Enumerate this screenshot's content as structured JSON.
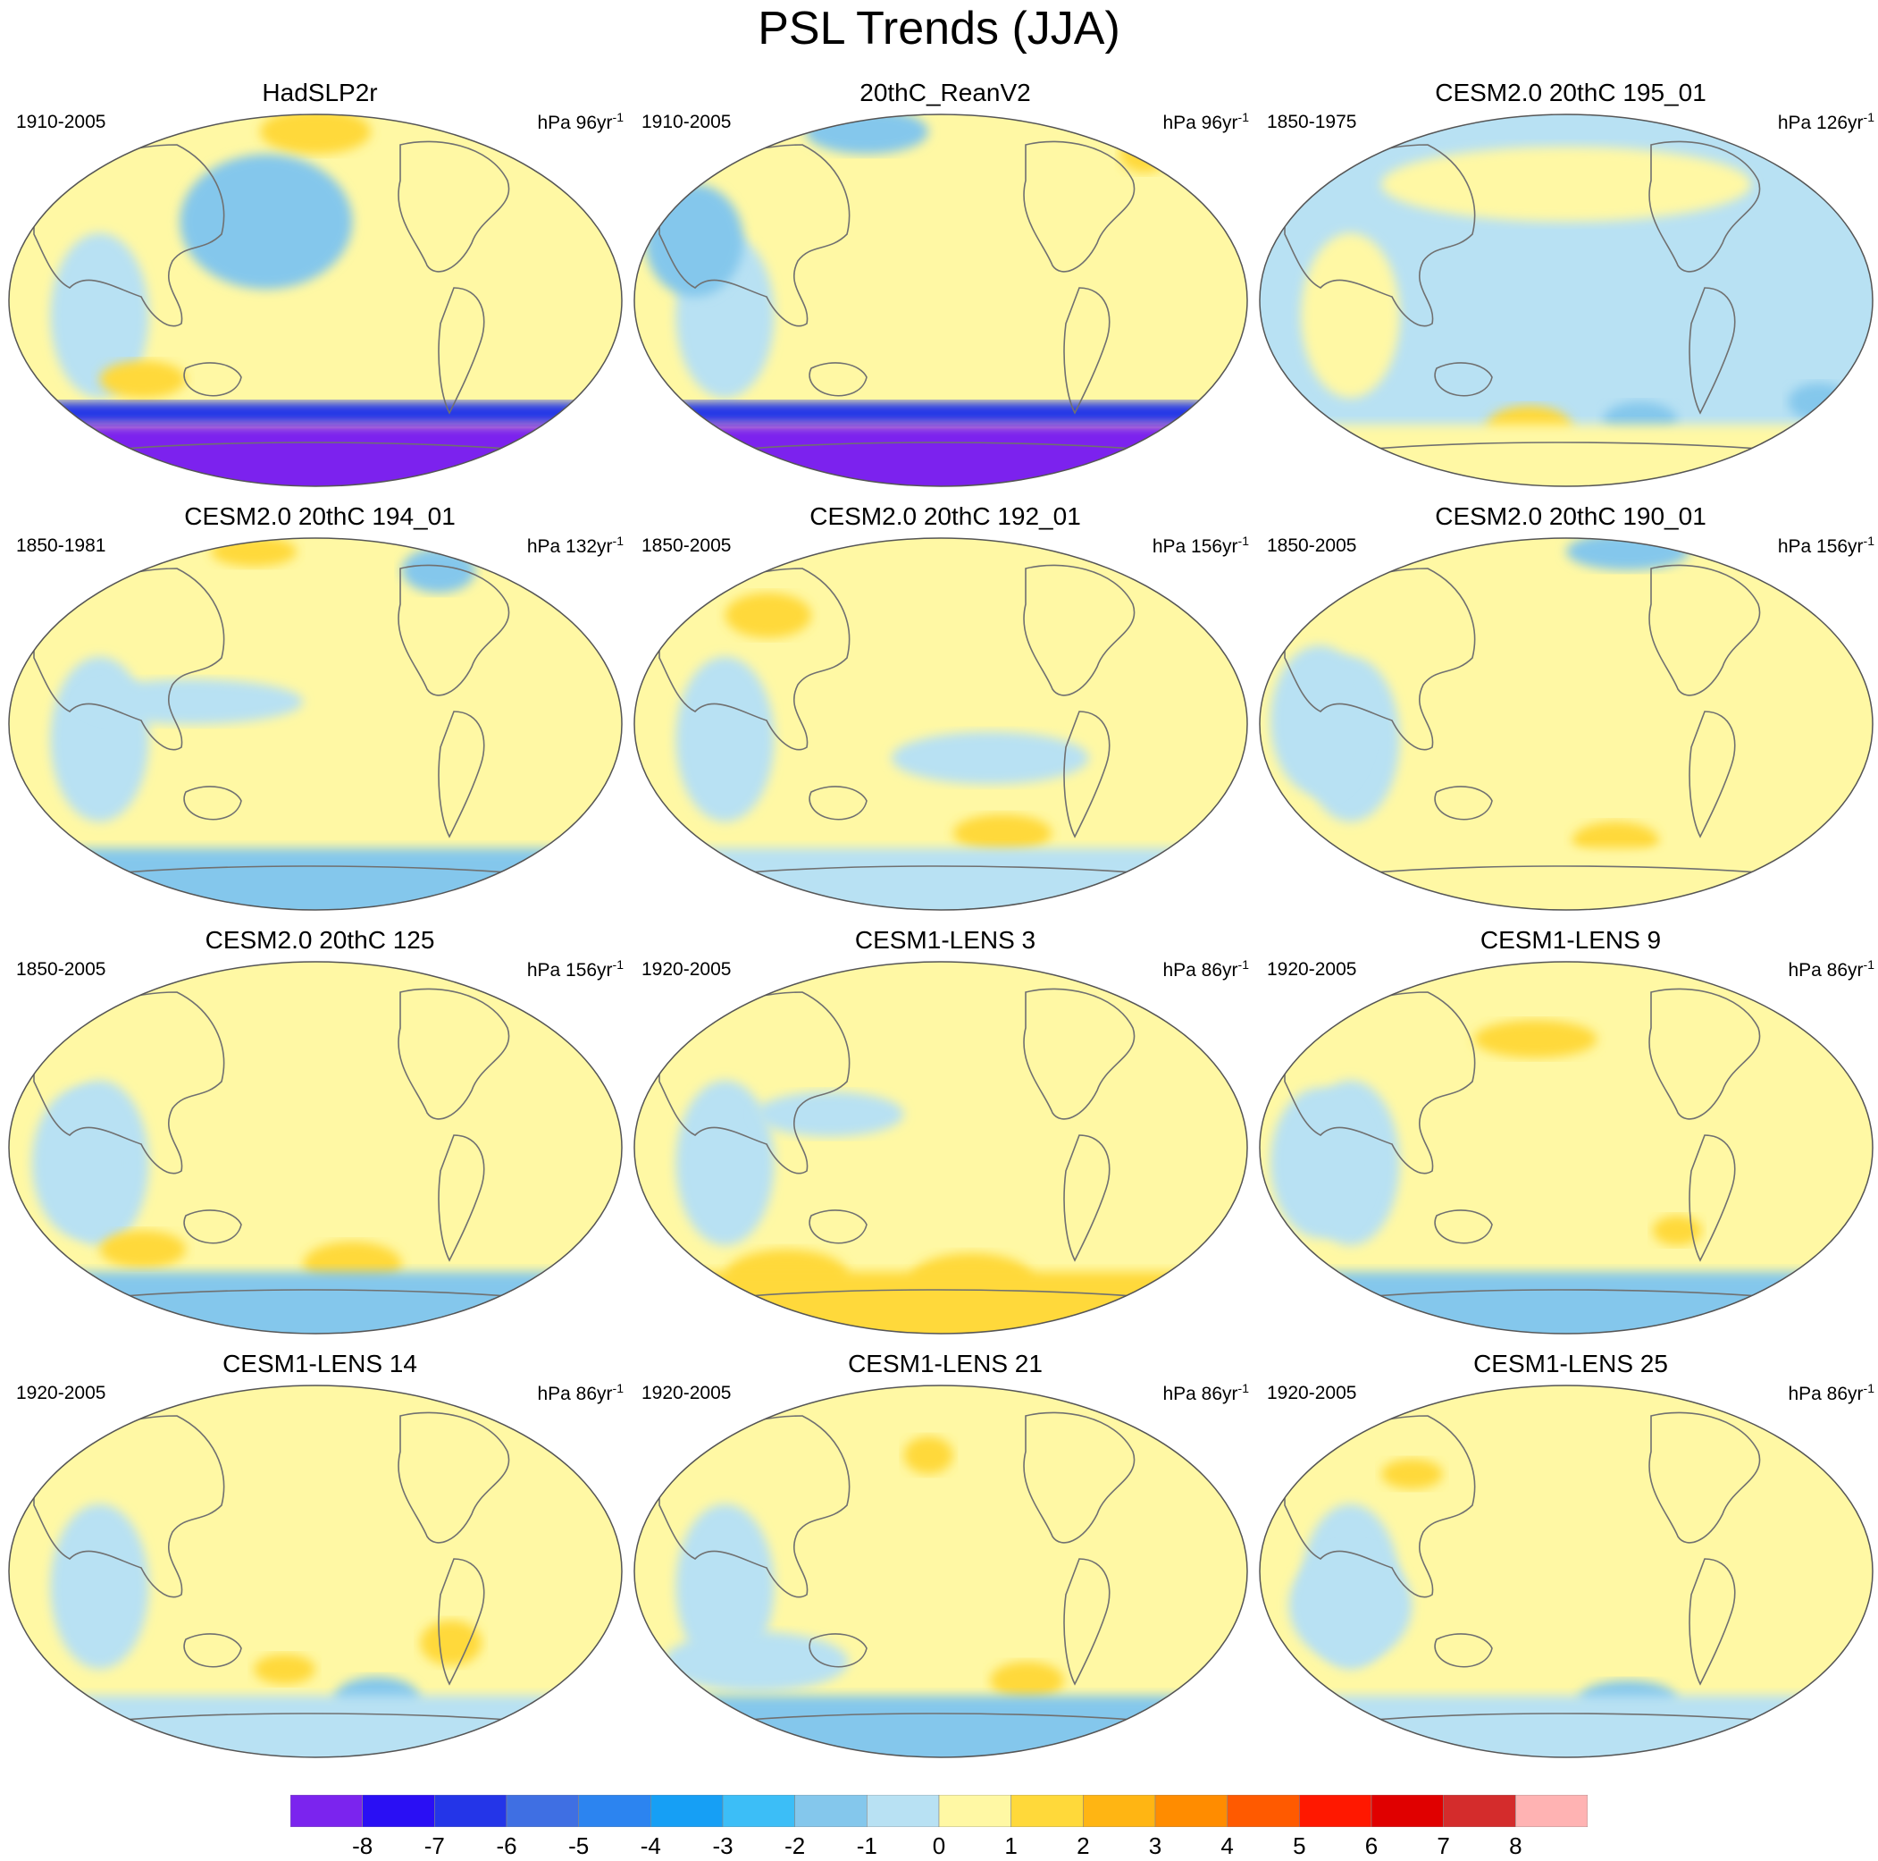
{
  "title": "PSL Trends (JJA)",
  "panels": [
    {
      "title": "HadSLP2r",
      "period": "1910-2005",
      "units": "hPa 96yr",
      "exp": "-1"
    },
    {
      "title": "20thC_ReanV2",
      "period": "1910-2005",
      "units": "hPa 96yr",
      "exp": "-1"
    },
    {
      "title": "CESM2.0 20thC 195_01",
      "period": "1850-1975",
      "units": "hPa 126yr",
      "exp": "-1"
    },
    {
      "title": "CESM2.0 20thC 194_01",
      "period": "1850-1981",
      "units": "hPa 132yr",
      "exp": "-1"
    },
    {
      "title": "CESM2.0 20thC 192_01",
      "period": "1850-2005",
      "units": "hPa 156yr",
      "exp": "-1"
    },
    {
      "title": "CESM2.0 20thC 190_01",
      "period": "1850-2005",
      "units": "hPa 156yr",
      "exp": "-1"
    },
    {
      "title": "CESM2.0 20thC 125",
      "period": "1850-2005",
      "units": "hPa 156yr",
      "exp": "-1"
    },
    {
      "title": "CESM1-LENS 3",
      "period": "1920-2005",
      "units": "hPa 86yr",
      "exp": "-1"
    },
    {
      "title": "CESM1-LENS 9",
      "period": "1920-2005",
      "units": "hPa 86yr",
      "exp": "-1"
    },
    {
      "title": "CESM1-LENS 14",
      "period": "1920-2005",
      "units": "hPa 86yr",
      "exp": "-1"
    },
    {
      "title": "CESM1-LENS 21",
      "period": "1920-2005",
      "units": "hPa 86yr",
      "exp": "-1"
    },
    {
      "title": "CESM1-LENS 25",
      "period": "1920-2005",
      "units": "hPa 86yr",
      "exp": "-1"
    }
  ],
  "colorbar": {
    "colors": [
      "#7b24ee",
      "#2a0ff4",
      "#2435e8",
      "#3f6fe3",
      "#2c84f0",
      "#169ff5",
      "#3cbef7",
      "#84c7ec",
      "#b8e1f3",
      "#fff8a4",
      "#ffd93a",
      "#ffb513",
      "#ff8c00",
      "#ff5a00",
      "#ff1800",
      "#e00000",
      "#d42c2c",
      "#ffb3b3"
    ],
    "labels": [
      "-8",
      "-7",
      "-6",
      "-5",
      "-4",
      "-3",
      "-2",
      "-1",
      "0",
      "1",
      "2",
      "3",
      "4",
      "5",
      "6",
      "7",
      "8"
    ]
  },
  "regional_patterns": [
    {
      "bg": "yellow",
      "blobs": [
        [
          "orange",
          0.5,
          0.06,
          0.09,
          0.06
        ],
        [
          "blue",
          0.42,
          0.3,
          0.14,
          0.18
        ],
        [
          "orange",
          0.22,
          0.72,
          0.07,
          0.05
        ]
      ],
      "south": "deep-purple"
    },
    {
      "bg": "yellow",
      "blobs": [
        [
          "blue",
          0.38,
          0.06,
          0.1,
          0.06
        ],
        [
          "orange",
          0.83,
          0.12,
          0.04,
          0.05
        ],
        [
          "blue",
          0.1,
          0.35,
          0.08,
          0.15
        ]
      ],
      "south": "deep-purple"
    },
    {
      "bg": "lightblue",
      "blobs": [
        [
          "yellow",
          0.5,
          0.2,
          0.3,
          0.1
        ],
        [
          "orange",
          0.44,
          0.85,
          0.07,
          0.06
        ],
        [
          "blue",
          0.62,
          0.83,
          0.06,
          0.05
        ],
        [
          "blue",
          0.91,
          0.78,
          0.05,
          0.05
        ]
      ],
      "south": "yellow"
    },
    {
      "bg": "yellow",
      "blobs": [
        [
          "orange",
          0.4,
          0.05,
          0.07,
          0.04
        ],
        [
          "blue",
          0.7,
          0.1,
          0.06,
          0.06
        ],
        [
          "lightblue",
          0.3,
          0.45,
          0.18,
          0.06
        ]
      ],
      "south": "blue"
    },
    {
      "bg": "yellow",
      "blobs": [
        [
          "orange",
          0.22,
          0.22,
          0.07,
          0.06
        ],
        [
          "lightblue",
          0.58,
          0.6,
          0.16,
          0.07
        ],
        [
          "orange",
          0.6,
          0.8,
          0.08,
          0.05
        ]
      ],
      "south": "lightblue"
    },
    {
      "bg": "yellow",
      "blobs": [
        [
          "blue",
          0.6,
          0.05,
          0.1,
          0.05
        ],
        [
          "orange",
          0.58,
          0.82,
          0.07,
          0.05
        ],
        [
          "lightblue",
          0.1,
          0.5,
          0.08,
          0.2
        ]
      ],
      "south": "yellow"
    },
    {
      "bg": "yellow",
      "blobs": [
        [
          "orange",
          0.56,
          0.82,
          0.08,
          0.06
        ],
        [
          "orange",
          0.22,
          0.78,
          0.07,
          0.05
        ],
        [
          "lightblue",
          0.12,
          0.55,
          0.08,
          0.2
        ]
      ],
      "south": "blue"
    },
    {
      "bg": "yellow",
      "blobs": [
        [
          "lightblue",
          0.32,
          0.42,
          0.12,
          0.06
        ],
        [
          "orange",
          0.25,
          0.85,
          0.1,
          0.07
        ],
        [
          "orange",
          0.55,
          0.86,
          0.1,
          0.07
        ]
      ],
      "south": "orange"
    },
    {
      "bg": "yellow",
      "blobs": [
        [
          "orange",
          0.45,
          0.22,
          0.1,
          0.05
        ],
        [
          "lightblue",
          0.1,
          0.55,
          0.08,
          0.2
        ],
        [
          "orange",
          0.68,
          0.73,
          0.04,
          0.04
        ]
      ],
      "south": "blue"
    },
    {
      "bg": "yellow",
      "blobs": [
        [
          "blue",
          0.6,
          0.85,
          0.07,
          0.06
        ],
        [
          "orange",
          0.45,
          0.77,
          0.05,
          0.04
        ],
        [
          "orange",
          0.72,
          0.7,
          0.05,
          0.06
        ]
      ],
      "south": "lightblue"
    },
    {
      "bg": "yellow",
      "blobs": [
        [
          "orange",
          0.48,
          0.2,
          0.04,
          0.05
        ],
        [
          "orange",
          0.64,
          0.8,
          0.06,
          0.05
        ],
        [
          "lightblue",
          0.2,
          0.75,
          0.15,
          0.08
        ]
      ],
      "south": "blue"
    },
    {
      "bg": "yellow",
      "blobs": [
        [
          "blue",
          0.6,
          0.85,
          0.08,
          0.05
        ],
        [
          "lightblue",
          0.15,
          0.6,
          0.1,
          0.15
        ],
        [
          "orange",
          0.25,
          0.25,
          0.05,
          0.04
        ]
      ],
      "south": "lightblue"
    }
  ]
}
